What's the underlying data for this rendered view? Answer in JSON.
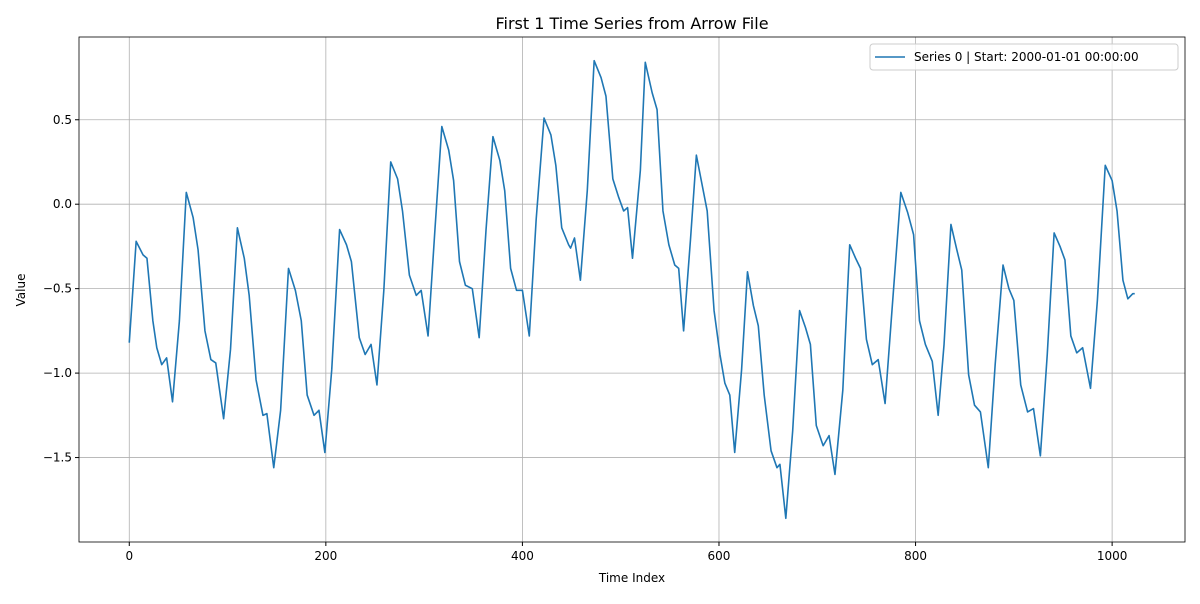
{
  "chart_data": {
    "type": "line",
    "title": "First 1 Time Series from Arrow File",
    "x_label": "Time Index",
    "y_label": "Value",
    "x": [
      0,
      7,
      14,
      18,
      24,
      28,
      33,
      38,
      44,
      51,
      58,
      65,
      70,
      77,
      83,
      88,
      96,
      103,
      110,
      117,
      122,
      129,
      136,
      140,
      147,
      154,
      162,
      169,
      175,
      181,
      188,
      193,
      199,
      206,
      214,
      221,
      226,
      234,
      240,
      246,
      252,
      259,
      266,
      273,
      278,
      285,
      292,
      297,
      304,
      311,
      318,
      325,
      330,
      336,
      342,
      349,
      356,
      363,
      370,
      377,
      382,
      388,
      394,
      400,
      407,
      414,
      422,
      429,
      434,
      440,
      447,
      449,
      453,
      459,
      466,
      473,
      480,
      485,
      492,
      498,
      503,
      507,
      512,
      520,
      525,
      532,
      537,
      543,
      549,
      555,
      559,
      564,
      571,
      577,
      583,
      588,
      595,
      601,
      606,
      611,
      616,
      623,
      629,
      635,
      640,
      646,
      653,
      659,
      662,
      668,
      675,
      682,
      688,
      693,
      699,
      706,
      712,
      718,
      726,
      733,
      739,
      744,
      750,
      756,
      762,
      769,
      776,
      785,
      792,
      798,
      804,
      810,
      817,
      823,
      829,
      836,
      842,
      847,
      854,
      860,
      866,
      874,
      881,
      889,
      895,
      900,
      907,
      914,
      920,
      927,
      934,
      941,
      947,
      952,
      958,
      964,
      970,
      978,
      985,
      993,
      1000,
      1005,
      1011,
      1016,
      1021,
      1023
    ],
    "series": [
      {
        "name": "Series 0 | Start: 2000-01-01 00:00:00",
        "color": "#1f77b4",
        "values": [
          -0.82,
          -0.22,
          -0.3,
          -0.32,
          -0.69,
          -0.85,
          -0.95,
          -0.91,
          -1.17,
          -0.69,
          0.07,
          -0.08,
          -0.27,
          -0.75,
          -0.92,
          -0.94,
          -1.27,
          -0.86,
          -0.14,
          -0.32,
          -0.54,
          -1.04,
          -1.25,
          -1.24,
          -1.56,
          -1.22,
          -0.38,
          -0.51,
          -0.69,
          -1.13,
          -1.25,
          -1.22,
          -1.47,
          -0.98,
          -0.15,
          -0.24,
          -0.34,
          -0.79,
          -0.89,
          -0.83,
          -1.07,
          -0.51,
          0.25,
          0.15,
          -0.04,
          -0.42,
          -0.54,
          -0.51,
          -0.78,
          -0.15,
          0.46,
          0.32,
          0.14,
          -0.34,
          -0.48,
          -0.5,
          -0.79,
          -0.15,
          0.4,
          0.26,
          0.08,
          -0.38,
          -0.51,
          -0.51,
          -0.78,
          -0.09,
          0.51,
          0.41,
          0.23,
          -0.14,
          -0.24,
          -0.26,
          -0.2,
          -0.45,
          0.08,
          0.85,
          0.75,
          0.64,
          0.15,
          0.04,
          -0.04,
          -0.02,
          -0.32,
          0.2,
          0.84,
          0.66,
          0.56,
          -0.04,
          -0.24,
          -0.36,
          -0.38,
          -0.75,
          -0.21,
          0.29,
          0.11,
          -0.04,
          -0.63,
          -0.89,
          -1.06,
          -1.13,
          -1.47,
          -0.98,
          -0.4,
          -0.6,
          -0.72,
          -1.13,
          -1.46,
          -1.56,
          -1.54,
          -1.86,
          -1.34,
          -0.63,
          -0.73,
          -0.83,
          -1.31,
          -1.43,
          -1.37,
          -1.6,
          -1.1,
          -0.24,
          -0.32,
          -0.38,
          -0.8,
          -0.95,
          -0.92,
          -1.18,
          -0.63,
          0.07,
          -0.05,
          -0.18,
          -0.69,
          -0.83,
          -0.93,
          -1.25,
          -0.83,
          -0.12,
          -0.27,
          -0.39,
          -1.01,
          -1.19,
          -1.23,
          -1.56,
          -0.95,
          -0.36,
          -0.5,
          -0.57,
          -1.07,
          -1.23,
          -1.21,
          -1.49,
          -0.89,
          -0.17,
          -0.25,
          -0.33,
          -0.78,
          -0.88,
          -0.85,
          -1.09,
          -0.57,
          0.23,
          0.14,
          -0.04,
          -0.45,
          -0.56,
          -0.53,
          -0.53
        ]
      }
    ],
    "xlim": [
      -51.15,
      1074.15
    ],
    "ylim": [
      -2.0,
      0.99
    ],
    "xticks": [
      0,
      200,
      400,
      600,
      800,
      1000
    ],
    "yticks": [
      {
        "value": -1.5,
        "label": "−1.5"
      },
      {
        "value": -1.0,
        "label": "−1.0"
      },
      {
        "value": -0.5,
        "label": "−0.5"
      },
      {
        "value": 0,
        "label": "0.0"
      },
      0.5
    ],
    "grid": true,
    "legend": "upper right"
  }
}
